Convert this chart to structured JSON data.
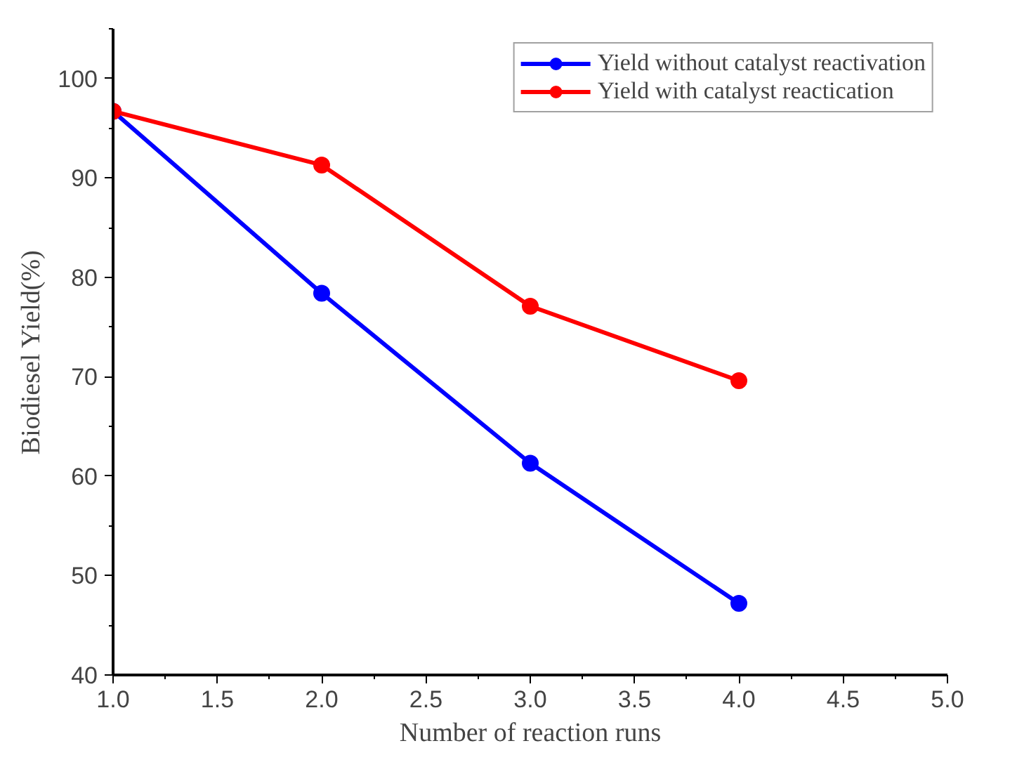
{
  "chart_data": {
    "type": "line",
    "xlabel": "Number of reaction runs",
    "ylabel": "Biodiesel Yield(%)",
    "x": [
      1,
      2,
      3,
      4
    ],
    "series": [
      {
        "name": "Yield without catalyst reactivation",
        "color": "#0000ff",
        "values": [
          96.7,
          78.4,
          61.3,
          47.2
        ]
      },
      {
        "name": "Yield with catalyst reactication",
        "color": "#ff0000",
        "values": [
          96.7,
          91.3,
          77.1,
          69.6
        ]
      }
    ],
    "xlim": [
      1,
      5
    ],
    "xticks": [
      {
        "value": 1,
        "label": "1.0"
      },
      {
        "value": 1.5,
        "label": "1.5"
      },
      {
        "value": 2,
        "label": "2.0"
      },
      {
        "value": 2.5,
        "label": "2.5"
      },
      {
        "value": 3,
        "label": "3.0"
      },
      {
        "value": 3.5,
        "label": "3.5"
      },
      {
        "value": 4,
        "label": "4.0"
      },
      {
        "value": 4.5,
        "label": "4.5"
      },
      {
        "value": 5,
        "label": "5.0"
      }
    ],
    "ylim": [
      40,
      105
    ],
    "yticks": [
      40,
      50,
      60,
      70,
      80,
      90,
      100
    ],
    "grid": false,
    "legend": "top right",
    "marker": "circle",
    "line_style": "solid"
  }
}
